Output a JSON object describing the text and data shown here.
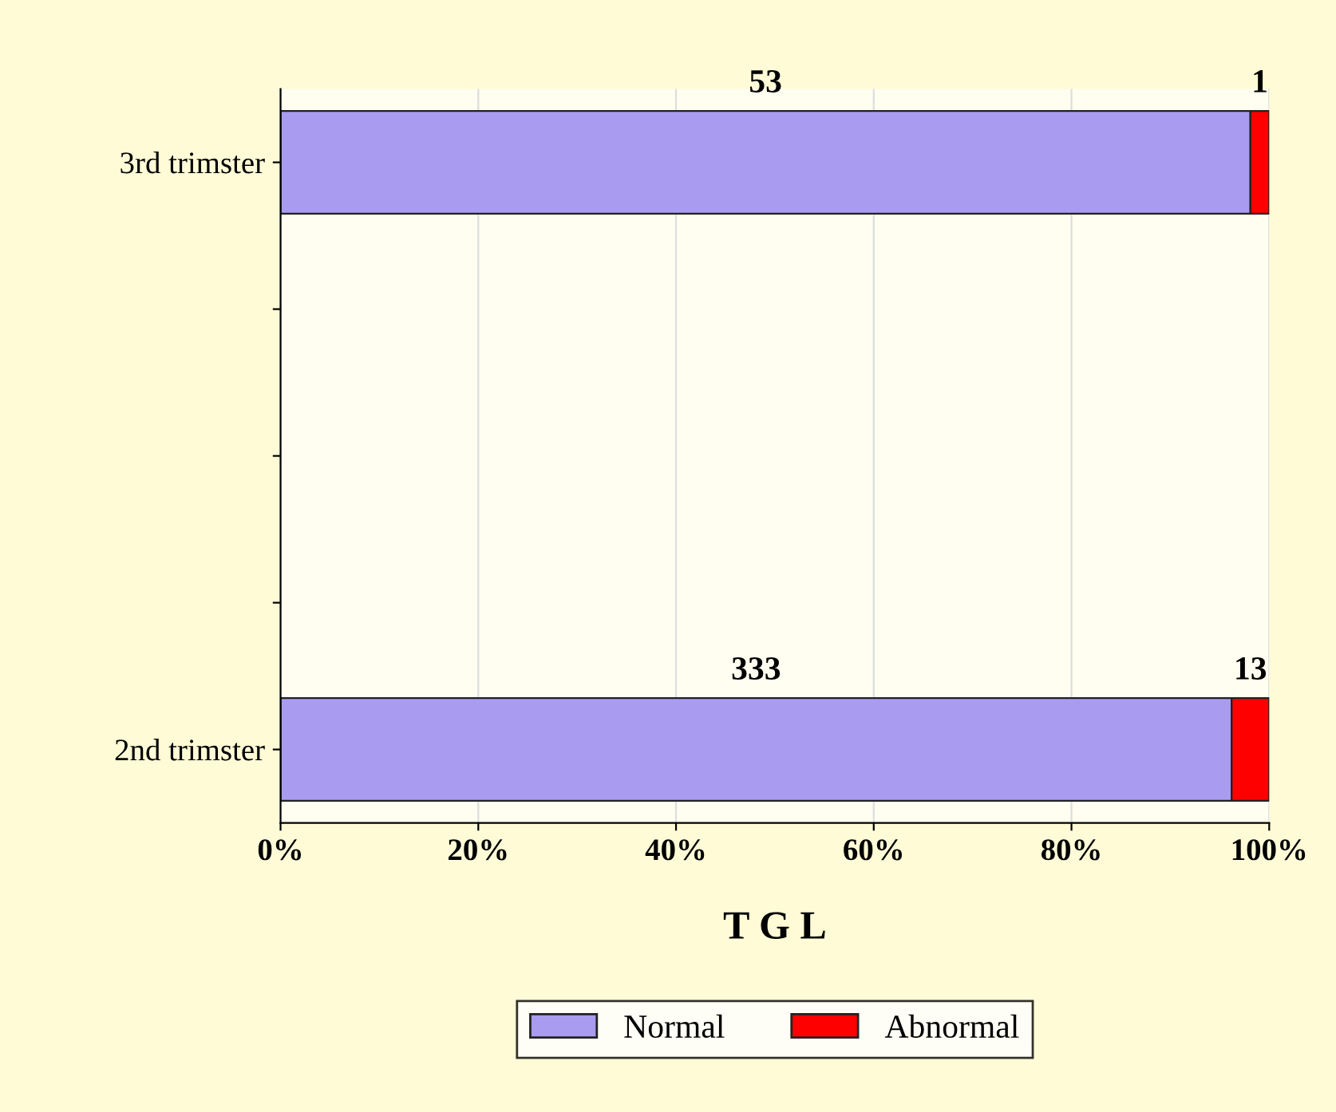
{
  "chart_data": {
    "type": "bar",
    "orientation": "horizontal",
    "stacked": true,
    "xlabel": "T G L",
    "categories": [
      "3rd trimster",
      null,
      null,
      null,
      "2nd trimster"
    ],
    "series": [
      {
        "name": "Normal",
        "color": "#a99cf0",
        "values": [
          98.1,
          null,
          null,
          null,
          96.2
        ]
      },
      {
        "name": "Abnormal",
        "color": "#ff0000",
        "values": [
          1.9,
          null,
          null,
          null,
          3.8
        ]
      }
    ],
    "annotations": [
      "53",
      "1",
      "333",
      "13"
    ],
    "xlim": [
      0,
      100
    ],
    "xticks": [
      {
        "value": 0,
        "label": "0%"
      },
      {
        "value": 20,
        "label": "20%"
      },
      {
        "value": 40,
        "label": "40%"
      },
      {
        "value": 60,
        "label": "60%"
      },
      {
        "value": 80,
        "label": "80%"
      },
      {
        "value": 100,
        "label": "100%"
      }
    ],
    "grid": "x",
    "legend": "bottom"
  }
}
